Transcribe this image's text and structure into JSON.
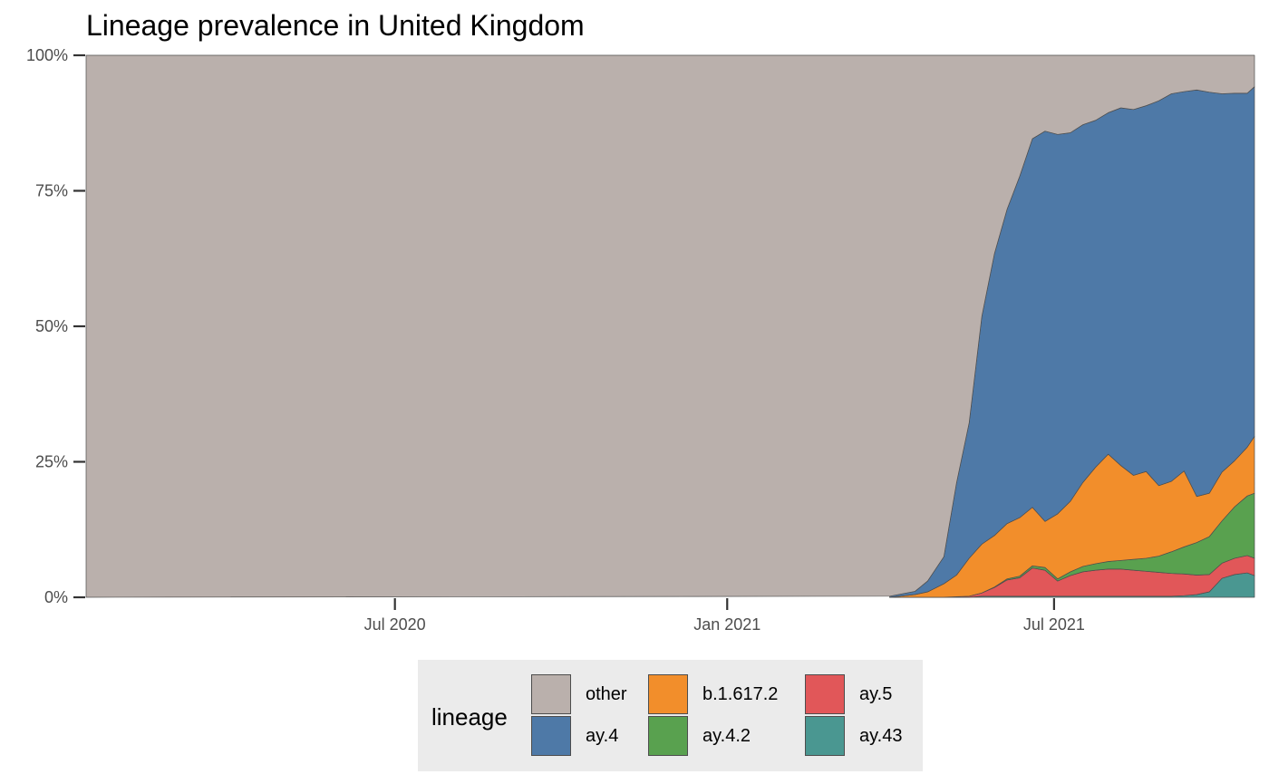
{
  "chart_data": {
    "type": "area",
    "stacked": true,
    "normalized": true,
    "title": "Lineage prevalence in United Kingdom",
    "xlabel": "",
    "ylabel": "",
    "x_range": [
      "2020-01-12",
      "2021-10-20"
    ],
    "x_ticks": [
      {
        "date": "2020-07-01",
        "label": "Jul 2020"
      },
      {
        "date": "2021-01-01",
        "label": "Jan 2021"
      },
      {
        "date": "2021-07-01",
        "label": "Jul 2021"
      }
    ],
    "ylim": [
      0,
      1
    ],
    "y_ticks": [
      {
        "value": 0,
        "label": "0%"
      },
      {
        "value": 0.25,
        "label": "25%"
      },
      {
        "value": 0.5,
        "label": "50%"
      },
      {
        "value": 0.75,
        "label": "75%"
      },
      {
        "value": 1,
        "label": "100%"
      }
    ],
    "legend": {
      "title": "lineage",
      "position": "bottom"
    },
    "x": [
      "2021-04-01",
      "2021-04-15",
      "2021-04-22",
      "2021-05-01",
      "2021-05-08",
      "2021-05-15",
      "2021-05-22",
      "2021-05-29",
      "2021-06-05",
      "2021-06-12",
      "2021-06-19",
      "2021-06-26",
      "2021-07-03",
      "2021-07-10",
      "2021-07-17",
      "2021-07-24",
      "2021-07-31",
      "2021-08-07",
      "2021-08-14",
      "2021-08-21",
      "2021-08-28",
      "2021-09-04",
      "2021-09-11",
      "2021-09-18",
      "2021-09-25",
      "2021-10-02",
      "2021-10-09",
      "2021-10-16",
      "2021-10-20"
    ],
    "series": [
      {
        "name": "ay.43",
        "color": "#4a9791",
        "values": [
          0,
          0,
          0,
          0,
          0,
          0,
          0.002,
          0.002,
          0.002,
          0.002,
          0.002,
          0.002,
          0.002,
          0.002,
          0.002,
          0.002,
          0.002,
          0.002,
          0.002,
          0.002,
          0.002,
          0.002,
          0.003,
          0.005,
          0.01,
          0.035,
          0.042,
          0.045,
          0.04
        ]
      },
      {
        "name": "ay.5",
        "color": "#e15759",
        "values": [
          0,
          0,
          0,
          0,
          0.001,
          0.002,
          0.006,
          0.016,
          0.03,
          0.034,
          0.052,
          0.048,
          0.028,
          0.038,
          0.045,
          0.048,
          0.05,
          0.05,
          0.048,
          0.046,
          0.044,
          0.042,
          0.04,
          0.036,
          0.032,
          0.028,
          0.03,
          0.032,
          0.032
        ]
      },
      {
        "name": "ay.4.2",
        "color": "#59a14f",
        "values": [
          0,
          0,
          0,
          0,
          0,
          0,
          0,
          0.001,
          0.002,
          0.003,
          0.004,
          0.005,
          0.004,
          0.007,
          0.01,
          0.012,
          0.014,
          0.016,
          0.02,
          0.024,
          0.03,
          0.04,
          0.05,
          0.06,
          0.07,
          0.078,
          0.095,
          0.11,
          0.12
        ]
      },
      {
        "name": "b.1.617.2",
        "color": "#f28e2b",
        "values": [
          0,
          0.005,
          0.01,
          0.025,
          0.04,
          0.07,
          0.09,
          0.095,
          0.102,
          0.108,
          0.108,
          0.085,
          0.12,
          0.13,
          0.155,
          0.178,
          0.198,
          0.175,
          0.155,
          0.16,
          0.13,
          0.13,
          0.14,
          0.085,
          0.08,
          0.09,
          0.085,
          0.09,
          0.105
        ]
      },
      {
        "name": "ay.4",
        "color": "#4e79a7",
        "values": [
          0.002,
          0.006,
          0.02,
          0.05,
          0.17,
          0.25,
          0.42,
          0.52,
          0.58,
          0.63,
          0.68,
          0.72,
          0.7,
          0.68,
          0.66,
          0.64,
          0.63,
          0.66,
          0.675,
          0.675,
          0.71,
          0.715,
          0.7,
          0.75,
          0.74,
          0.698,
          0.678,
          0.653,
          0.645
        ]
      },
      {
        "name": "other",
        "color": "#bab0ac",
        "values": [
          0.998,
          0.989,
          0.97,
          0.925,
          0.789,
          0.678,
          0.482,
          0.366,
          0.286,
          0.223,
          0.154,
          0.14,
          0.146,
          0.143,
          0.128,
          0.118,
          0.106,
          0.097,
          0.1,
          0.093,
          0.084,
          0.071,
          0.067,
          0.064,
          0.068,
          0.071,
          0.07,
          0.07,
          0.058
        ]
      }
    ]
  },
  "legend_entries": [
    {
      "name": "other",
      "color": "#bab0ac"
    },
    {
      "name": "ay.4",
      "color": "#4e79a7"
    },
    {
      "name": "b.1.617.2",
      "color": "#f28e2b"
    },
    {
      "name": "ay.4.2",
      "color": "#59a14f"
    },
    {
      "name": "ay.5",
      "color": "#e15759"
    },
    {
      "name": "ay.43",
      "color": "#4a9791"
    }
  ],
  "colors": {
    "background": "#ffffff",
    "other": "#bab0ac",
    "outline": "#4d4d4d",
    "legend_bg": "#ebebeb"
  }
}
